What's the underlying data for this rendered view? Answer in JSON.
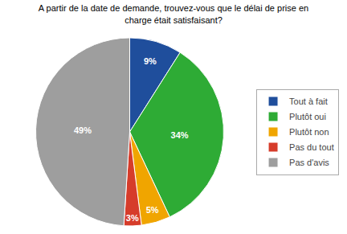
{
  "chart_data": {
    "type": "pie",
    "title": "A partir de la date de demande, trouvez-vous que le délai de prise en\ncharge était satisfaisant?",
    "categories": [
      "Tout à fait",
      "Plutôt oui",
      "Plutôt non",
      "Pas du tout",
      "Pas d'avis"
    ],
    "values": [
      9,
      34,
      5,
      3,
      49
    ],
    "value_labels": [
      "9%",
      "34%",
      "5%",
      "3%",
      "49%"
    ],
    "colors": [
      "#1f4e9c",
      "#2eab35",
      "#f0a500",
      "#d63c2a",
      "#9e9e9e"
    ],
    "data_labels": true,
    "legend": "right"
  }
}
